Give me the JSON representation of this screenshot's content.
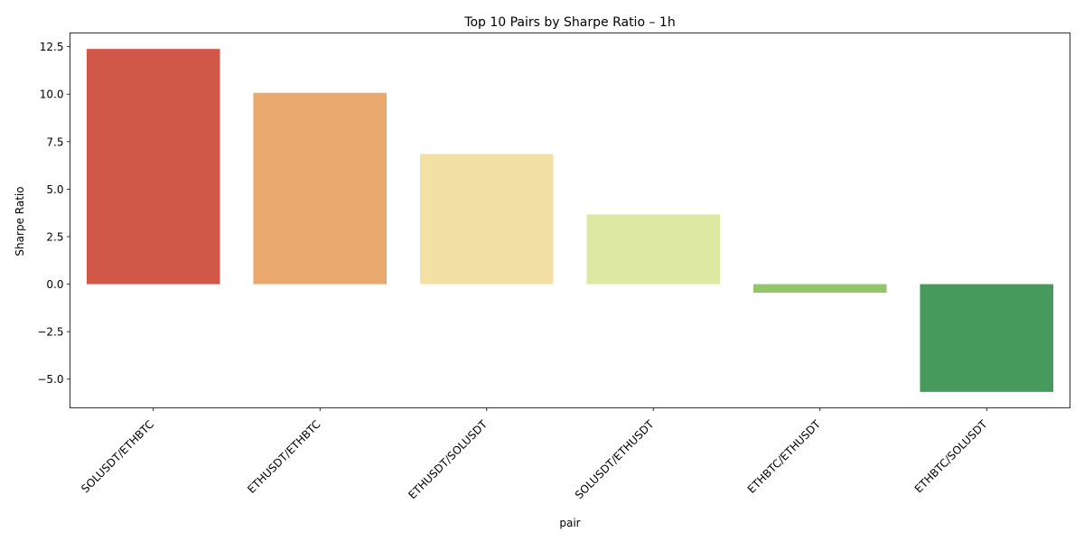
{
  "chart_data": {
    "type": "bar",
    "title": "Top 10 Pairs by Sharpe Ratio – 1h",
    "xlabel": "pair",
    "ylabel": "Sharpe Ratio",
    "categories": [
      "SOLUSDT/ETHBTC",
      "ETHUSDT/ETHBTC",
      "ETHUSDT/SOLUSDT",
      "SOLUSDT/ETHUSDT",
      "ETHBTC/ETHUSDT",
      "ETHBTC/SOLUSDT"
    ],
    "values": [
      12.38,
      10.07,
      6.85,
      3.67,
      -0.45,
      -5.67
    ],
    "colors": [
      "#d15848",
      "#e8a86e",
      "#f3e0a4",
      "#dde8a2",
      "#94c56a",
      "#479a5c"
    ],
    "ylim": [
      -6.51,
      13.22
    ],
    "yticks": [
      -5.0,
      -2.5,
      0.0,
      2.5,
      5.0,
      7.5,
      10.0,
      12.5
    ],
    "ytick_labels": [
      "−5.0",
      "−2.5",
      "0.0",
      "2.5",
      "5.0",
      "7.5",
      "10.0",
      "12.5"
    ],
    "grid": false,
    "legend": "none"
  }
}
